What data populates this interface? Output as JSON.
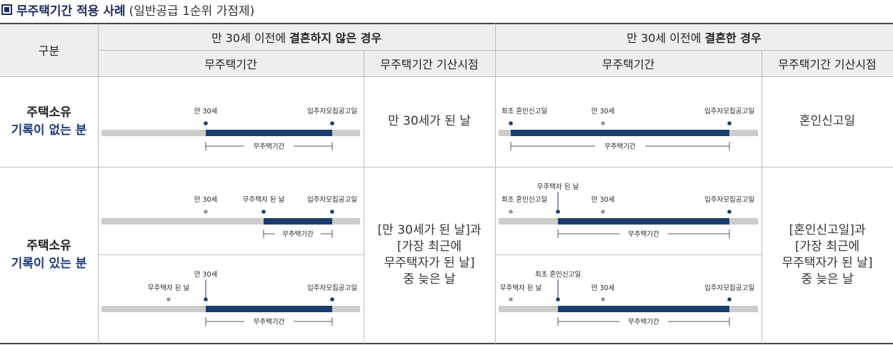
{
  "title": {
    "main": "무주택기간 적용 사례",
    "sub": "(일반공급 1순위 가점제)"
  },
  "headers": {
    "category": "구분",
    "before_prefix": "만 30세 이전에 ",
    "before_bold": "결혼하지 않은 경우",
    "after_prefix": "만 30세 이전에 ",
    "after_bold": "결혼한 경우",
    "period": "무주택기간",
    "start": "무주택기간 기산시점"
  },
  "rows": [
    {
      "line1": "주택소유",
      "line2": "기록이 없는 분"
    },
    {
      "line1": "주택소유",
      "line2": "기록이 있는 분"
    }
  ],
  "start_texts": {
    "r1_before": "만 30세가 된 날",
    "r1_after": "혼인신고일",
    "r2_before": [
      "[만 30세가 된 날]과",
      "[가장 최근에",
      "무주택자가 된 날]",
      "중 늦은 날"
    ],
    "r2_after": [
      "[혼인신고일]과",
      "[가장 최근에",
      "무주택자가 된 날]",
      "중 늦은 날"
    ]
  },
  "diagram_labels": {
    "age30": "만 30세",
    "notice": "입주자모집공고일",
    "marriage": "최초 혼인신고일",
    "homeless": "무주택자 된 날",
    "period": "무주택기간"
  },
  "colors": {
    "navy": "#1d3c6e",
    "gray_bar": "#cccccc",
    "gray_dot": "#999999",
    "title": "#1d2d5c"
  }
}
